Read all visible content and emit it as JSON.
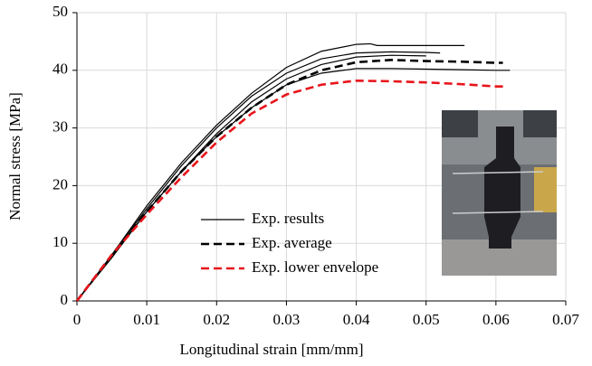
{
  "chart_data": {
    "type": "line",
    "xlabel": "Longitudinal strain [mm/mm]",
    "ylabel": "Normal stress [MPa]",
    "xlim": [
      0,
      0.07
    ],
    "xticks": [
      0,
      0.01,
      0.02,
      0.03,
      0.04,
      0.05,
      0.06,
      0.07
    ],
    "ylim": [
      0,
      50
    ],
    "yticks": [
      0,
      10,
      20,
      30,
      40,
      50
    ],
    "grid": true,
    "legend": "center",
    "series": [
      {
        "name": "Exp. results",
        "color": "#000000",
        "dash": "solid",
        "width": 1.2,
        "curves": [
          {
            "x": [
              0,
              0.005,
              0.01,
              0.015,
              0.02,
              0.025,
              0.03,
              0.035,
              0.04,
              0.042,
              0.043,
              0.0555
            ],
            "values": [
              0,
              8,
              16.5,
              24,
              30.5,
              36,
              40.5,
              43.3,
              44.5,
              44.6,
              44.3,
              44.3
            ]
          },
          {
            "x": [
              0,
              0.005,
              0.01,
              0.015,
              0.02,
              0.025,
              0.03,
              0.035,
              0.04,
              0.045,
              0.05,
              0.052
            ],
            "values": [
              0,
              8,
              16,
              23.5,
              30,
              35.5,
              39.5,
              42,
              43,
              43.2,
              43.1,
              43
            ]
          },
          {
            "x": [
              0,
              0.005,
              0.01,
              0.015,
              0.02,
              0.025,
              0.03,
              0.035,
              0.04,
              0.045,
              0.05
            ],
            "values": [
              0,
              7.5,
              15.5,
              22.5,
              29,
              34.5,
              38.5,
              41,
              42.3,
              42.6,
              42.5
            ]
          },
          {
            "x": [
              0,
              0.005,
              0.01,
              0.015,
              0.02,
              0.025,
              0.03,
              0.035,
              0.04,
              0.045,
              0.05,
              0.055,
              0.06,
              0.062
            ],
            "values": [
              0,
              7.8,
              15.5,
              22.5,
              28.5,
              33.5,
              37.5,
              39.5,
              40.3,
              40.3,
              40.2,
              40.1,
              40,
              40
            ]
          }
        ]
      },
      {
        "name": "Exp. average",
        "color": "#000000",
        "dash": "dashed",
        "width": 2.6,
        "curves": [
          {
            "x": [
              0,
              0.005,
              0.01,
              0.015,
              0.02,
              0.025,
              0.03,
              0.035,
              0.04,
              0.045,
              0.05,
              0.055,
              0.06,
              0.061
            ],
            "values": [
              0,
              8,
              15.5,
              22.5,
              28.5,
              33.5,
              37.5,
              40,
              41.4,
              41.8,
              41.6,
              41.5,
              41.3,
              41.3
            ]
          }
        ]
      },
      {
        "name": "Exp. lower envelope",
        "color": "#e8141b",
        "dash": "dashed",
        "width": 2.6,
        "curves": [
          {
            "x": [
              0,
              0.005,
              0.01,
              0.015,
              0.02,
              0.025,
              0.03,
              0.035,
              0.04,
              0.045,
              0.05,
              0.055,
              0.06,
              0.0615
            ],
            "values": [
              0,
              8,
              15,
              21.5,
              27.5,
              32.5,
              35.8,
              37.5,
              38.2,
              38.1,
              37.9,
              37.6,
              37.2,
              37.2
            ]
          }
        ]
      }
    ]
  }
}
